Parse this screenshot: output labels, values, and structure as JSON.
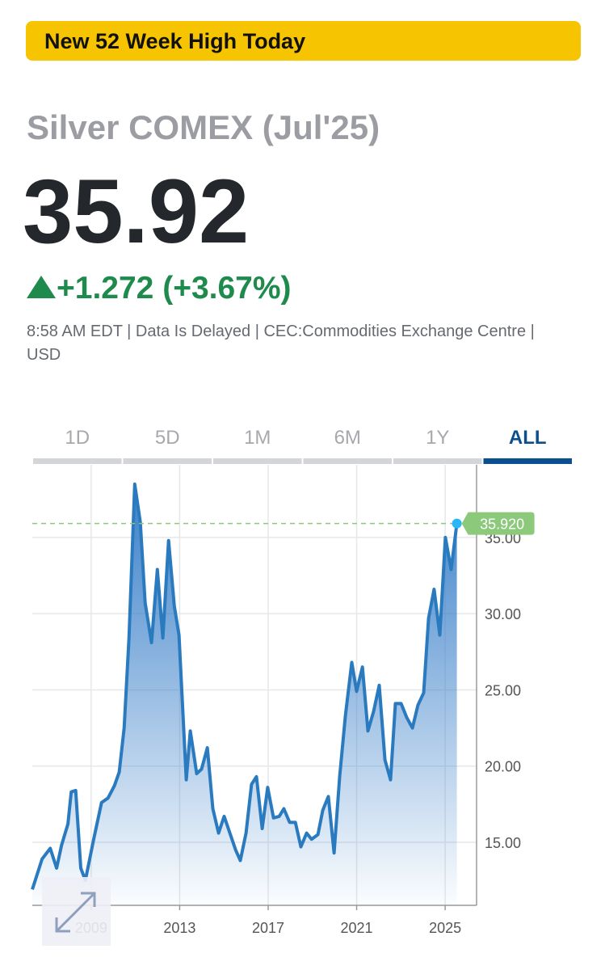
{
  "banner": "New 52 Week High Today",
  "quote": {
    "name": "Silver COMEX (Jul'25)",
    "price": "35.92",
    "change": "+1.272 (+3.67%)",
    "meta": "8:58 AM EDT | Data Is Delayed | CEC:Commodities Exchange Centre | USD"
  },
  "tabs": {
    "items": [
      "1D",
      "5D",
      "1M",
      "6M",
      "1Y",
      "ALL"
    ],
    "active": 5
  },
  "chart_data": {
    "type": "line",
    "x": [
      2006.34,
      2006.78,
      2007.15,
      2007.44,
      2007.66,
      2007.95,
      2008.1,
      2008.3,
      2008.53,
      2008.74,
      2009.1,
      2009.47,
      2009.76,
      2010.05,
      2010.27,
      2010.49,
      2010.71,
      2010.97,
      2011.22,
      2011.44,
      2011.73,
      2011.99,
      2012.24,
      2012.5,
      2012.76,
      2012.97,
      2013.3,
      2013.48,
      2013.77,
      2013.99,
      2014.25,
      2014.5,
      2014.76,
      2015.01,
      2015.27,
      2015.53,
      2015.74,
      2016.0,
      2016.25,
      2016.47,
      2016.73,
      2016.98,
      2017.24,
      2017.5,
      2017.71,
      2017.97,
      2018.23,
      2018.48,
      2018.74,
      2018.96,
      2019.25,
      2019.47,
      2019.72,
      2019.98,
      2020.23,
      2020.49,
      2020.78,
      2021.0,
      2021.26,
      2021.51,
      2021.77,
      2022.02,
      2022.28,
      2022.53,
      2022.75,
      2023.01,
      2023.26,
      2023.52,
      2023.77,
      2024.03,
      2024.25,
      2024.5,
      2024.76,
      2025.01,
      2025.27,
      2025.53
    ],
    "values": [
      11.9,
      13.9,
      14.6,
      13.3,
      14.8,
      16.2,
      18.3,
      18.4,
      13.3,
      12.5,
      15.1,
      17.6,
      17.9,
      18.7,
      19.6,
      22.5,
      28.4,
      38.5,
      36.0,
      30.7,
      28.1,
      32.9,
      28.4,
      34.8,
      30.5,
      28.6,
      19.1,
      22.3,
      19.5,
      19.8,
      21.2,
      17.2,
      15.6,
      16.7,
      15.6,
      14.5,
      13.8,
      15.6,
      18.8,
      19.3,
      15.9,
      18.6,
      16.6,
      16.7,
      17.2,
      16.3,
      16.3,
      14.7,
      15.6,
      15.2,
      15.5,
      17.1,
      18.0,
      14.3,
      19.3,
      23.3,
      26.8,
      24.9,
      26.5,
      22.3,
      23.6,
      25.3,
      20.4,
      19.1,
      24.1,
      24.1,
      23.2,
      22.5,
      24.0,
      24.8,
      29.7,
      31.6,
      28.6,
      35.0,
      32.9,
      35.92
    ],
    "color": "#2a7abf",
    "xlim": [
      2006.34,
      2026.42
    ],
    "xticks": [
      2009,
      2013,
      2017,
      2021,
      2025
    ],
    "ylim": [
      10.86,
      39.77
    ],
    "yticks": [
      {
        "value": 15,
        "label": "15.00"
      },
      {
        "value": 20,
        "label": "20.00"
      },
      {
        "value": 25,
        "label": "25.00"
      },
      {
        "value": 30,
        "label": "30.00"
      },
      {
        "value": 35,
        "label": "35.00"
      }
    ],
    "grid": true,
    "reference_line": {
      "value": 35.92,
      "label": "35.920",
      "color": "#8cc97a"
    }
  }
}
